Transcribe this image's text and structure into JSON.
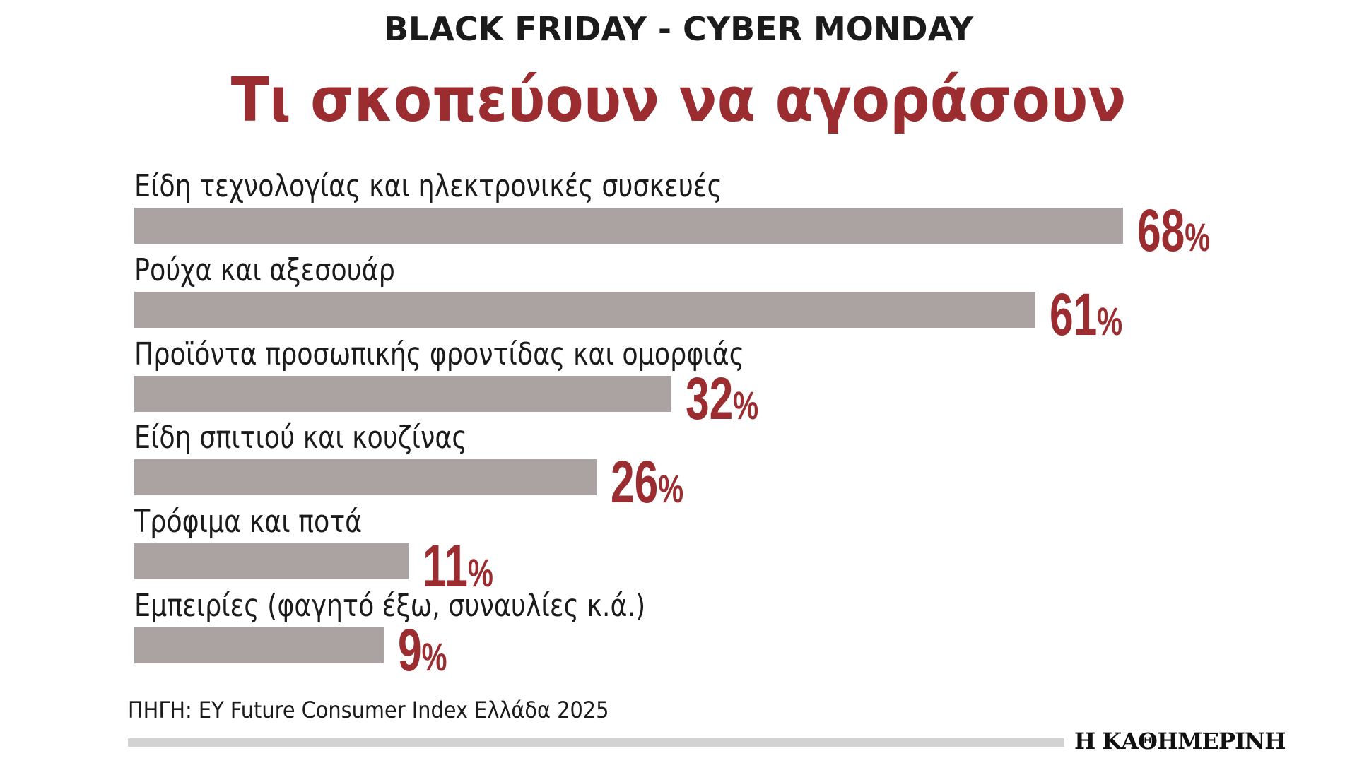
{
  "header": {
    "kicker": "BLACK FRIDAY - CYBER MONDAY",
    "title": "Τι σκοπεύουν να αγοράσουν"
  },
  "chart_data": {
    "type": "bar",
    "orientation": "horizontal",
    "title": "Τι σκοπεύουν να αγοράσουν",
    "categories": [
      "Είδη τεχνολογίας και ηλεκτρονικές συσκευές",
      "Ρούχα και αξεσουάρ",
      "Προϊόντα προσωπικής φροντίδας και ομορφιάς",
      "Είδη σπιτιού και κουζίνας",
      "Τρόφιμα και ποτά",
      "Εμπειρίες (φαγητό έξω, συναυλίες κ.ά.)"
    ],
    "values": [
      68,
      61,
      32,
      26,
      11,
      9
    ],
    "unit": "%",
    "xlabel": "",
    "ylabel": "",
    "bar_color": "#aba3a1",
    "value_color": "#9b2d30"
  },
  "footer": {
    "source": "ΠΗΓΗ: EY Future Consumer Index Ελλάδα 2025",
    "logo": "Η ΚΑΘΗΜΕΡΙΝΗ"
  }
}
